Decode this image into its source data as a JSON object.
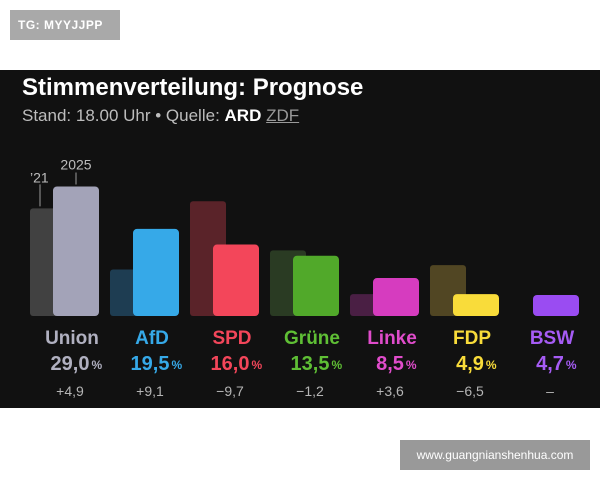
{
  "header_tag": "TG: MYYJJPP",
  "watermark": "www.guangnianshenhua.com",
  "chart_data": {
    "type": "bar",
    "title": "Stimmenverteilung: Prognose",
    "subtitle": {
      "prefix": "Stand: 18.00 Uhr • Quelle:",
      "source_1": "ARD",
      "source_2": "ZDF"
    },
    "year_labels": {
      "previous": "’21",
      "current": "2025"
    },
    "percent_sign": "%",
    "categories": [
      "Union",
      "AfD",
      "SPD",
      "Grüne",
      "Linke",
      "FDP",
      "BSW"
    ],
    "series": [
      {
        "name": "’21",
        "values": [
          24.1,
          10.4,
          25.7,
          14.7,
          4.9,
          11.4,
          null
        ]
      },
      {
        "name": "2025",
        "values": [
          29.0,
          19.5,
          16.0,
          13.5,
          8.5,
          4.9,
          4.7
        ]
      }
    ],
    "value_labels": [
      "29,0",
      "19,5",
      "16,0",
      "13,5",
      "8,5",
      "4,9",
      "4,7"
    ],
    "change_labels": [
      "+4,9",
      "+9,1",
      "−9,7",
      "−1,2",
      "+3,6",
      "−6,5",
      "–"
    ],
    "colors": {
      "current": [
        "#a3a3b8",
        "#36a9e8",
        "#f3465a",
        "#51a92a",
        "#d63cbf",
        "#f9dc3a",
        "#9a4cf2"
      ],
      "previous": [
        "#414141",
        "#1e3d52",
        "#5a2329",
        "#2a3b23",
        "#4a1f44",
        "#514623",
        null
      ],
      "labels": [
        "#b0b0c0",
        "#36a9e8",
        "#f3465a",
        "#5fbf35",
        "#e04ccb",
        "#f9dc3a",
        "#a65cf5"
      ]
    },
    "ylim": [
      0,
      30
    ],
    "grid": false,
    "legend": "none"
  }
}
